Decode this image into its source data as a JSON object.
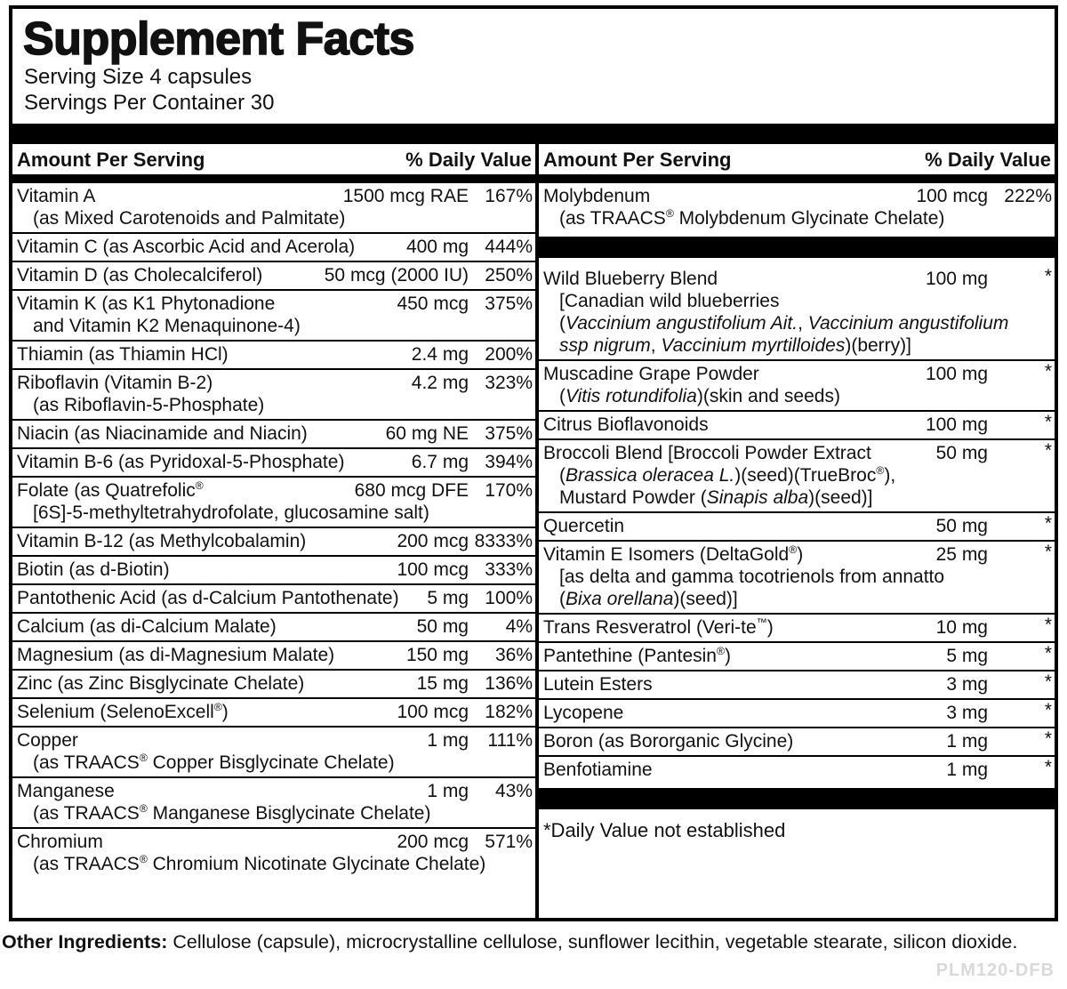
{
  "colors": {
    "background": "#ffffff",
    "text": "#111111",
    "bar": "#000000",
    "code_watermark": "#d9d9d9"
  },
  "panel": {
    "title": "Supplement Facts",
    "serving_size": "Serving Size 4 capsules",
    "servings_per_container": "Servings Per Container 30",
    "column_header": {
      "amount": "Amount Per Serving",
      "daily_value": "% Daily Value"
    },
    "columns": [
      {
        "rows": [
          {
            "name": "Vitamin A",
            "amount": "1500 mcg RAE",
            "dv": "167%",
            "details": [
              "(as Mixed Carotenoids and Palmitate)"
            ]
          },
          {
            "name": "Vitamin C (as Ascorbic Acid and Acerola)",
            "amount": "400 mg",
            "dv": "444%"
          },
          {
            "name": "Vitamin D (as Cholecalciferol)",
            "amount": "50 mcg (2000 IU)",
            "dv": "250%"
          },
          {
            "name": "Vitamin K (as K1 Phytonadione",
            "amount": "450 mcg",
            "dv": "375%",
            "details": [
              "and Vitamin K2 Menaquinone-4)"
            ]
          },
          {
            "name": "Thiamin (as Thiamin HCl)",
            "amount": "2.4 mg",
            "dv": "200%"
          },
          {
            "name": "Riboflavin (Vitamin B-2)",
            "amount": "4.2 mg",
            "dv": "323%",
            "details": [
              "(as Riboflavin-5-Phosphate)"
            ]
          },
          {
            "name": "Niacin (as Niacinamide and Niacin)",
            "amount": "60 mg NE",
            "dv": "375%"
          },
          {
            "name": "Vitamin B-6 (as Pyridoxal-5-Phosphate)",
            "amount": "6.7 mg",
            "dv": "394%"
          },
          {
            "name": "Folate (as Quatrefolic®",
            "amount": "680 mcg DFE",
            "dv": "170%",
            "details": [
              "[6S]-5-methyltetrahydrofolate, glucosamine salt)"
            ]
          },
          {
            "name": "Vitamin B-12 (as Methylcobalamin)",
            "amount": "200 mcg",
            "dv": "8333%"
          },
          {
            "name": "Biotin (as d-Biotin)",
            "amount": "100 mcg",
            "dv": "333%"
          },
          {
            "name": "Pantothenic Acid (as d-Calcium Pantothenate)",
            "amount": "5 mg",
            "dv": "100%"
          },
          {
            "name": "Calcium (as di-Calcium Malate)",
            "amount": "50 mg",
            "dv": "4%"
          },
          {
            "name": "Magnesium (as di-Magnesium Malate)",
            "amount": "150 mg",
            "dv": "36%"
          },
          {
            "name": "Zinc (as Zinc Bisglycinate Chelate)",
            "amount": "15 mg",
            "dv": "136%"
          },
          {
            "name": "Selenium (SelenoExcell®)",
            "amount": "100 mcg",
            "dv": "182%"
          },
          {
            "name": "Copper",
            "amount": "1 mg",
            "dv": "111%",
            "details": [
              "(as TRAACS® Copper Bisglycinate Chelate)"
            ]
          },
          {
            "name": "Manganese",
            "amount": "1 mg",
            "dv": "43%",
            "details": [
              "(as TRAACS® Manganese Bisglycinate Chelate)"
            ]
          },
          {
            "name": "Chromium",
            "amount": "200 mcg",
            "dv": "571%",
            "details": [
              "(as TRAACS® Chromium Nicotinate Glycinate Chelate)"
            ]
          }
        ]
      },
      {
        "rows": [
          {
            "name": "Molybdenum",
            "amount": "100 mcg",
            "dv": "222%",
            "details": [
              "(as TRAACS® Molybdenum Glycinate Chelate)"
            ]
          },
          {
            "type": "bar"
          },
          {
            "name": "Wild Blueberry Blend",
            "amount": "100 mg",
            "dv": "*",
            "details": [
              "[Canadian wild blueberries",
              [
                {
                  "t": "(",
                  "i": false
                },
                {
                  "t": "Vaccinium angustifolium Ait.",
                  "i": true
                },
                {
                  "t": ", ",
                  "i": false
                },
                {
                  "t": "Vaccinium angustifolium",
                  "i": true
                }
              ],
              [
                {
                  "t": "ssp nigrum",
                  "i": true
                },
                {
                  "t": ", ",
                  "i": false
                },
                {
                  "t": "Vaccinium myrtilloides",
                  "i": true
                },
                {
                  "t": ")(berry)]",
                  "i": false
                }
              ]
            ]
          },
          {
            "name": "Muscadine Grape Powder",
            "amount": "100 mg",
            "dv": "*",
            "details": [
              [
                {
                  "t": "(",
                  "i": false
                },
                {
                  "t": "Vitis rotundifolia",
                  "i": true
                },
                {
                  "t": ")(skin and seeds)",
                  "i": false
                }
              ]
            ]
          },
          {
            "name": "Citrus Bioflavonoids",
            "amount": "100 mg",
            "dv": "*"
          },
          {
            "name": "Broccoli Blend [Broccoli Powder Extract",
            "amount": "50 mg",
            "dv": "*",
            "details": [
              [
                {
                  "t": "(",
                  "i": false
                },
                {
                  "t": "Brassica oleracea L.",
                  "i": true
                },
                {
                  "t": ")(seed)(TrueBroc®),",
                  "i": false
                }
              ],
              [
                {
                  "t": "Mustard Powder (",
                  "i": false
                },
                {
                  "t": "Sinapis alba",
                  "i": true
                },
                {
                  "t": ")(seed)]",
                  "i": false
                }
              ]
            ]
          },
          {
            "name": "Quercetin",
            "amount": "50 mg",
            "dv": "*"
          },
          {
            "name": "Vitamin E Isomers (DeltaGold®)",
            "amount": "25 mg",
            "dv": "*",
            "details": [
              "[as delta and gamma tocotrienols from annatto",
              [
                {
                  "t": "(",
                  "i": false
                },
                {
                  "t": "Bixa orellana",
                  "i": true
                },
                {
                  "t": ")(seed)]",
                  "i": false
                }
              ]
            ]
          },
          {
            "name": "Trans Resveratrol (Veri-te™)",
            "amount": "10 mg",
            "dv": "*"
          },
          {
            "name": "Pantethine (Pantesin®)",
            "amount": "5 mg",
            "dv": "*"
          },
          {
            "name": "Lutein Esters",
            "amount": "3 mg",
            "dv": "*"
          },
          {
            "name": "Lycopene",
            "amount": "3 mg",
            "dv": "*"
          },
          {
            "name": "Boron (as Bororganic Glycine)",
            "amount": "1 mg",
            "dv": "*"
          },
          {
            "name": "Benfotiamine",
            "amount": "1 mg",
            "dv": "*"
          },
          {
            "type": "bar"
          },
          {
            "type": "footnote",
            "text": "*Daily Value not established"
          }
        ]
      }
    ]
  },
  "footer": {
    "label": "Other Ingredients:",
    "text": " Cellulose (capsule), microcrystalline cellulose, sunflower lecithin, vegetable stearate, silicon dioxide."
  },
  "product_code": "PLM120-DFB"
}
